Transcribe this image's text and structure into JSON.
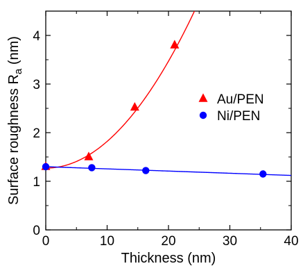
{
  "chart_data": {
    "type": "scatter",
    "xlabel": "Thickness (nm)",
    "ylabel": "Surface roughness R",
    "ylabel_subscript": "a",
    "ylabel_unit": " (nm)",
    "xlim": [
      0,
      40
    ],
    "ylim": [
      0,
      4.5
    ],
    "x_ticks": [
      0,
      10,
      20,
      30,
      40
    ],
    "y_ticks": [
      0,
      1,
      2,
      3,
      4
    ],
    "grid": false,
    "legend_position": "right",
    "series": [
      {
        "name": "Au/PEN",
        "marker": "triangle",
        "color": "#ff0000",
        "x": [
          0,
          7,
          14.5,
          21
        ],
        "y": [
          1.3,
          1.5,
          2.52,
          3.8
        ]
      },
      {
        "name": "Ni/PEN",
        "marker": "circle",
        "color": "#0000ff",
        "x": [
          0,
          7.5,
          16.3,
          35.4
        ],
        "y": [
          1.3,
          1.28,
          1.22,
          1.15
        ]
      }
    ],
    "fits": [
      {
        "series": "Au/PEN",
        "kind": "quadratic",
        "color": "#ff0000",
        "y0": 1.27,
        "a": 0.0055
      },
      {
        "series": "Ni/PEN",
        "kind": "linear",
        "color": "#0000ff",
        "y0": 1.3,
        "slope": -0.0045
      }
    ]
  }
}
